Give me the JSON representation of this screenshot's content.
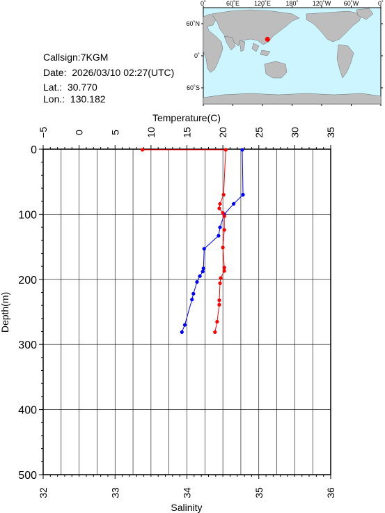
{
  "meta": {
    "callsign": "Callsign:7KGM",
    "date": "Date:  2026/03/10 02:27(UTC)",
    "lat": "Lat.:  30.770",
    "lon": "Lon.:  130.182"
  },
  "map": {
    "top_labels": [
      "0˚",
      "60˚E",
      "120˚E",
      "180˚",
      "120˚W",
      "60˚W",
      "0˚"
    ],
    "left_labels": [
      "60˚N",
      "0˚",
      "60˚S"
    ],
    "colors": {
      "ocean": "#ccf5ff",
      "land": "#bdbdbd",
      "marker": "#ff0000"
    },
    "marker": {
      "lon": 130.182,
      "lat": 30.77
    }
  },
  "chart_data": {
    "type": "line",
    "title": "",
    "xlabel_top": "Temperature(C)",
    "xlabel_bottom": "Salinity",
    "ylabel": "Depth(m)",
    "temperature_axis": {
      "range": [
        -5,
        35
      ],
      "ticks": [
        "−5",
        "0",
        "5",
        "10",
        "15",
        "20",
        "25",
        "30",
        "35"
      ]
    },
    "salinity_axis": {
      "range": [
        32,
        36
      ],
      "ticks": [
        "32",
        "33",
        "34",
        "35",
        "36"
      ]
    },
    "depth_axis": {
      "range": [
        0,
        500
      ],
      "ticks": [
        "0",
        "100",
        "200",
        "300",
        "400",
        "500"
      ]
    },
    "grid": true,
    "series": [
      {
        "color": "#0000ff",
        "units": "salinity",
        "points": [
          [
            34.77,
            1
          ],
          [
            34.78,
            70
          ],
          [
            34.65,
            84
          ],
          [
            34.52,
            100
          ],
          [
            34.46,
            120
          ],
          [
            34.44,
            133
          ],
          [
            34.24,
            153
          ],
          [
            34.23,
            183
          ],
          [
            34.22,
            188
          ],
          [
            34.18,
            195
          ],
          [
            34.14,
            204
          ],
          [
            34.09,
            222
          ],
          [
            34.07,
            231
          ],
          [
            33.97,
            270
          ],
          [
            33.93,
            281
          ]
        ]
      },
      {
        "color": "#ff0000",
        "units": "temperature",
        "points": [
          [
            8.8,
            1
          ],
          [
            20.4,
            1
          ],
          [
            20.1,
            70
          ],
          [
            19.6,
            84
          ],
          [
            19.5,
            91
          ],
          [
            20.0,
            98
          ],
          [
            20.2,
            103
          ],
          [
            20.2,
            124
          ],
          [
            20.0,
            151
          ],
          [
            20.2,
            182
          ],
          [
            20.2,
            187
          ],
          [
            19.7,
            198
          ],
          [
            19.6,
            206
          ],
          [
            19.5,
            232
          ],
          [
            19.5,
            239
          ],
          [
            19.2,
            265
          ],
          [
            18.9,
            281
          ]
        ]
      }
    ]
  }
}
